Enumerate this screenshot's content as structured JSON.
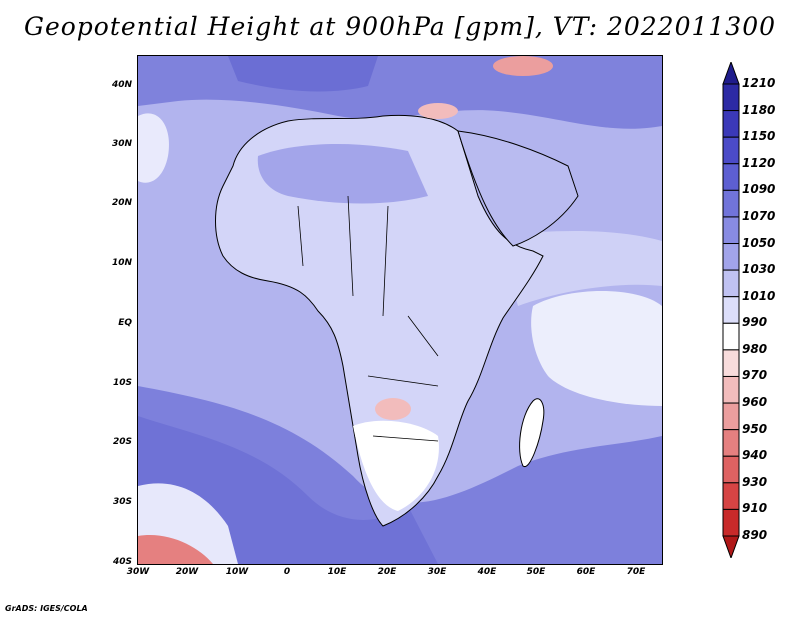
{
  "title": "Geopotential Height at 900hPa [gpm], VT: 2022011300",
  "credit": "GrADS: IGES/COLA",
  "map": {
    "region": "Africa and surrounding oceans",
    "lat_labels": [
      "40N",
      "30N",
      "20N",
      "10N",
      "EQ",
      "10S",
      "20S",
      "30S",
      "40S"
    ],
    "lon_labels": [
      "30W",
      "20W",
      "10W",
      "0",
      "10E",
      "20E",
      "30E",
      "40E",
      "50E",
      "60E",
      "70E"
    ],
    "lat_range": [
      -40,
      45
    ],
    "lon_range": [
      -30,
      75
    ]
  },
  "colorbar": {
    "labels": [
      "1210",
      "1180",
      "1150",
      "1120",
      "1090",
      "1070",
      "1050",
      "1030",
      "1010",
      "990",
      "980",
      "970",
      "960",
      "950",
      "940",
      "930",
      "910",
      "890"
    ],
    "colors": [
      "#1f1c8c",
      "#2c2aa4",
      "#3b39b8",
      "#4b4bc8",
      "#5d5fd2",
      "#7174da",
      "#888be2",
      "#a2a4ea",
      "#c0c2f2",
      "#dcdefa",
      "#ffffff",
      "#f8dcdc",
      "#f2bcbc",
      "#eb9e9e",
      "#e58080",
      "#de6262",
      "#d64444",
      "#c82a2a",
      "#b01818"
    ]
  }
}
